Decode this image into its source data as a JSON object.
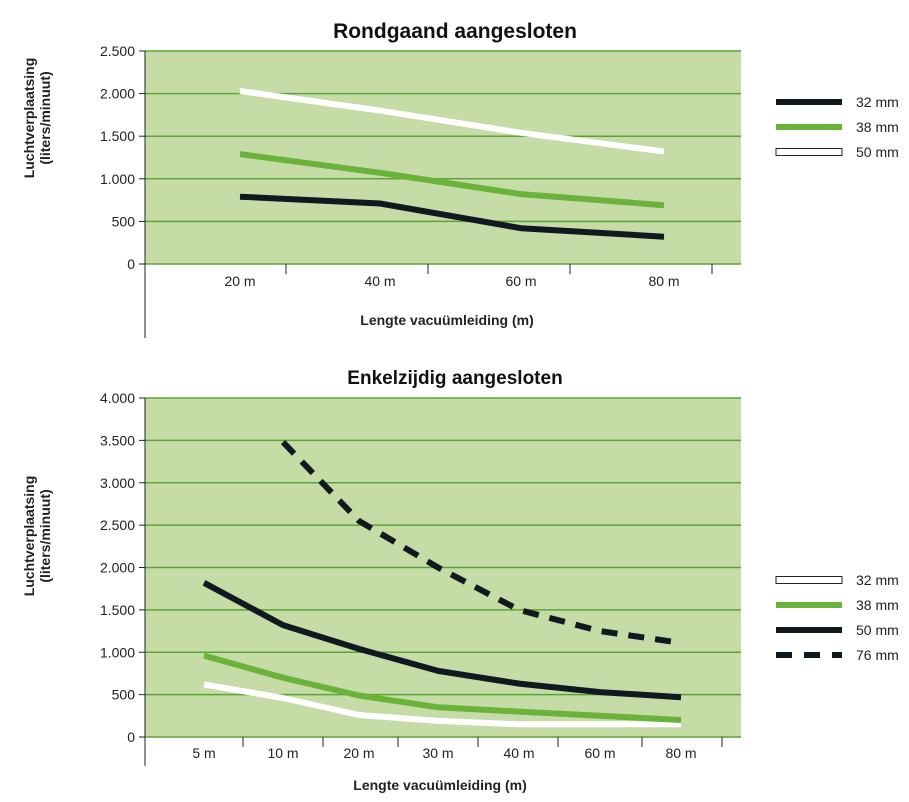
{
  "chart_data": [
    {
      "type": "line",
      "title": "Rondgaand aangesloten",
      "xlabel": "Lengte vacuümleiding (m)",
      "ylabel_line1": "Luchtverplaatsing",
      "ylabel_line2": "(liters/minuut)",
      "categories": [
        "20 m",
        "40 m",
        "60 m",
        "80 m"
      ],
      "ylim": [
        0,
        2500
      ],
      "yticks": [
        0,
        500,
        1000,
        1500,
        2000,
        2500
      ],
      "ytick_labels": [
        "0",
        "500",
        "1.000",
        "1.500",
        "2.000",
        "2.500"
      ],
      "grid": true,
      "background": "#c6dca6",
      "gridColor": "#5ca336",
      "legend_position": "right",
      "series": [
        {
          "name": "32 mm",
          "color": "#101820",
          "dashed": false,
          "outlined": false,
          "values": [
            790,
            710,
            420,
            320
          ]
        },
        {
          "name": "38 mm",
          "color": "#6bb23a",
          "dashed": false,
          "outlined": false,
          "values": [
            1290,
            1070,
            820,
            690
          ]
        },
        {
          "name": "50 mm",
          "color": "#ffffff",
          "dashed": false,
          "outlined": true,
          "values": [
            2030,
            1800,
            1540,
            1320
          ]
        }
      ]
    },
    {
      "type": "line",
      "title": "Enkelzijdig aangesloten",
      "xlabel": "Lengte vacuümleiding (m)",
      "ylabel_line1": "Luchtverplaatsing",
      "ylabel_line2": "(liters/minuut)",
      "categories": [
        "5 m",
        "10 m",
        "20 m",
        "30 m",
        "40 m",
        "60 m",
        "80 m"
      ],
      "ylim": [
        0,
        4000
      ],
      "yticks": [
        0,
        500,
        1000,
        1500,
        2000,
        2500,
        3000,
        3500,
        4000
      ],
      "ytick_labels": [
        "0",
        "500",
        "1.000",
        "1.500",
        "2.000",
        "2.500",
        "3.000",
        "3.500",
        "4.000"
      ],
      "grid": true,
      "background": "#c6dca6",
      "gridColor": "#5ca336",
      "legend_position": "right",
      "series": [
        {
          "name": "32 mm",
          "color": "#ffffff",
          "dashed": false,
          "outlined": true,
          "values": [
            620,
            460,
            260,
            190,
            150,
            150,
            150
          ]
        },
        {
          "name": "38 mm",
          "color": "#6bb23a",
          "dashed": false,
          "outlined": false,
          "values": [
            960,
            700,
            490,
            350,
            300,
            250,
            200
          ]
        },
        {
          "name": "50 mm",
          "color": "#101820",
          "dashed": false,
          "outlined": false,
          "values": [
            1820,
            1320,
            1040,
            780,
            630,
            530,
            470
          ]
        },
        {
          "name": "76 mm",
          "color": "#101820",
          "dashed": true,
          "outlined": false,
          "values": [
            null,
            3480,
            2550,
            2000,
            1500,
            1250,
            1110
          ]
        }
      ]
    }
  ]
}
